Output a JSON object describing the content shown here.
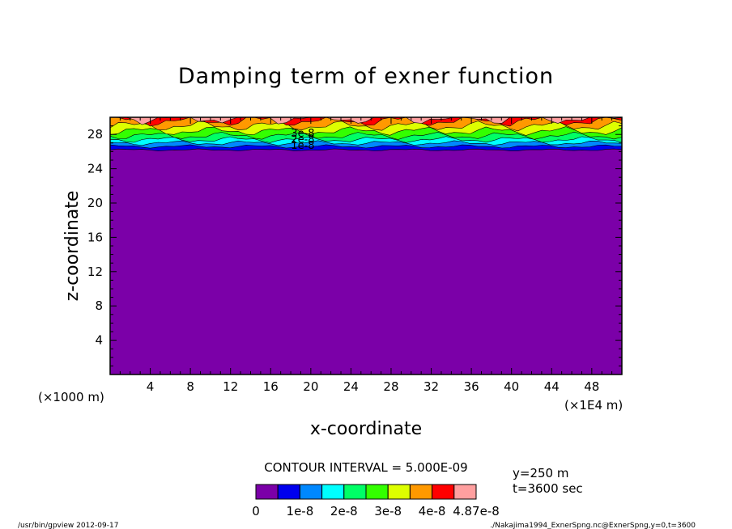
{
  "chart_data": {
    "type": "heatmap",
    "title": "Damping term of exner function",
    "xlabel": "x-coordinate",
    "ylabel": "z-coordinate",
    "x_unit_label": "(×1E4 m)",
    "y_unit_label": "(×1000 m)",
    "xlim": [
      0,
      51
    ],
    "ylim": [
      0,
      30
    ],
    "x_ticks": [
      "4",
      "8",
      "12",
      "16",
      "20",
      "24",
      "28",
      "32",
      "36",
      "40",
      "44",
      "48"
    ],
    "y_ticks": [
      "4",
      "8",
      "12",
      "16",
      "20",
      "24",
      "28"
    ],
    "contour_interval": "CONTOUR INTERVAL = 5.000E-09",
    "contour_labels": [
      "3e-8",
      "2e-8",
      "1e-8"
    ],
    "level_boundaries": [
      0,
      5e-09,
      1e-08,
      1.5e-08,
      2e-08,
      2.5e-08,
      3e-08,
      3.5e-08,
      4e-08,
      4.5e-08,
      4.87e-08
    ],
    "z_level_heights": [
      26.2,
      26.6,
      27.0,
      27.4,
      27.85,
      28.4,
      29.0,
      29.6,
      29.9
    ],
    "colorbar_colors": [
      "#7b00a8",
      "#0000ee",
      "#0088ff",
      "#00ffff",
      "#00ff66",
      "#33ff00",
      "#ddff00",
      "#ff9900",
      "#ff0000",
      "#ff9f9f"
    ],
    "colorbar_labels": [
      "0",
      "1e-8",
      "2e-8",
      "3e-8",
      "4e-8",
      "4.87e-8"
    ],
    "info": [
      "y=250 m",
      "t=3600 sec"
    ],
    "footer_left": "/usr/bin/gpview   2012-09-17",
    "footer_right": "./Nakajima1994_ExnerSpng.nc@ExnerSpng,y=0,t=3600"
  }
}
